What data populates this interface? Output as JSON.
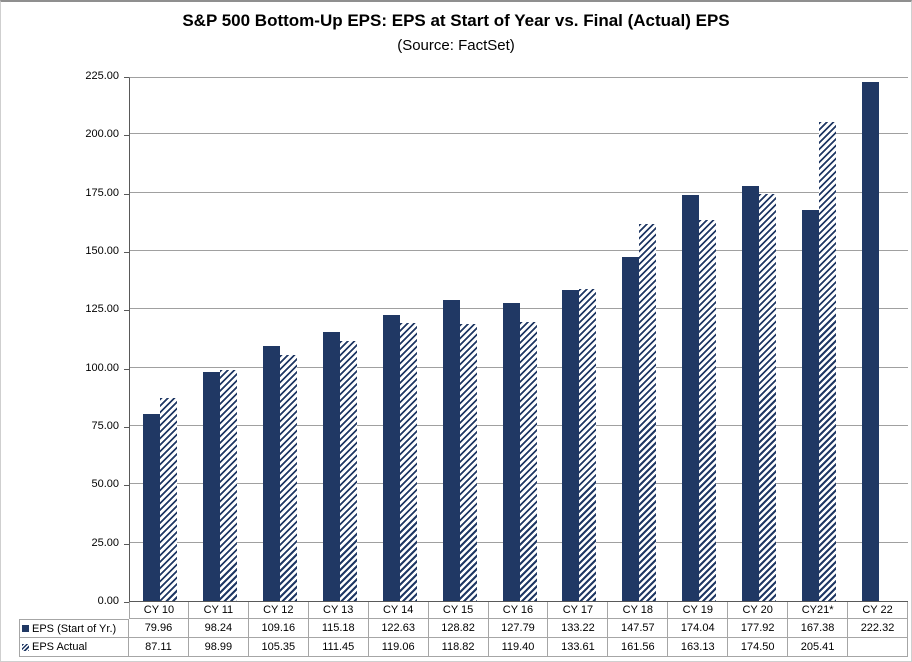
{
  "title": "S&P 500 Bottom-Up EPS: EPS at Start of Year vs. Final (Actual) EPS",
  "subtitle": "(Source: FactSet)",
  "chart_data": {
    "type": "bar",
    "categories": [
      "CY 10",
      "CY 11",
      "CY 12",
      "CY 13",
      "CY 14",
      "CY 15",
      "CY 16",
      "CY 17",
      "CY 18",
      "CY 19",
      "CY 20",
      "CY21*",
      "CY 22"
    ],
    "series": [
      {
        "name": "EPS (Start of Yr.)",
        "pattern": "solid",
        "values": [
          79.96,
          98.24,
          109.16,
          115.18,
          122.63,
          128.82,
          127.79,
          133.22,
          147.57,
          174.04,
          177.92,
          167.38,
          222.32
        ]
      },
      {
        "name": "EPS Actual",
        "pattern": "hatched",
        "values": [
          87.11,
          98.99,
          105.35,
          111.45,
          119.06,
          118.82,
          119.4,
          133.61,
          161.56,
          163.13,
          174.5,
          205.41,
          null
        ]
      }
    ],
    "ylim": [
      0,
      225
    ],
    "ytick_step": 25,
    "ytick_labels": [
      "0.00",
      "25.00",
      "50.00",
      "75.00",
      "100.00",
      "125.00",
      "150.00",
      "175.00",
      "200.00",
      "225.00"
    ],
    "grid": true,
    "legend_position": "data-table-left",
    "colors": {
      "bar_navy": "#203864",
      "hatch_background": "#ffffff",
      "gridline": "#a0a0a0",
      "axis_line": "#595959",
      "table_border": "#a6a6a6",
      "text": "#000000"
    }
  }
}
